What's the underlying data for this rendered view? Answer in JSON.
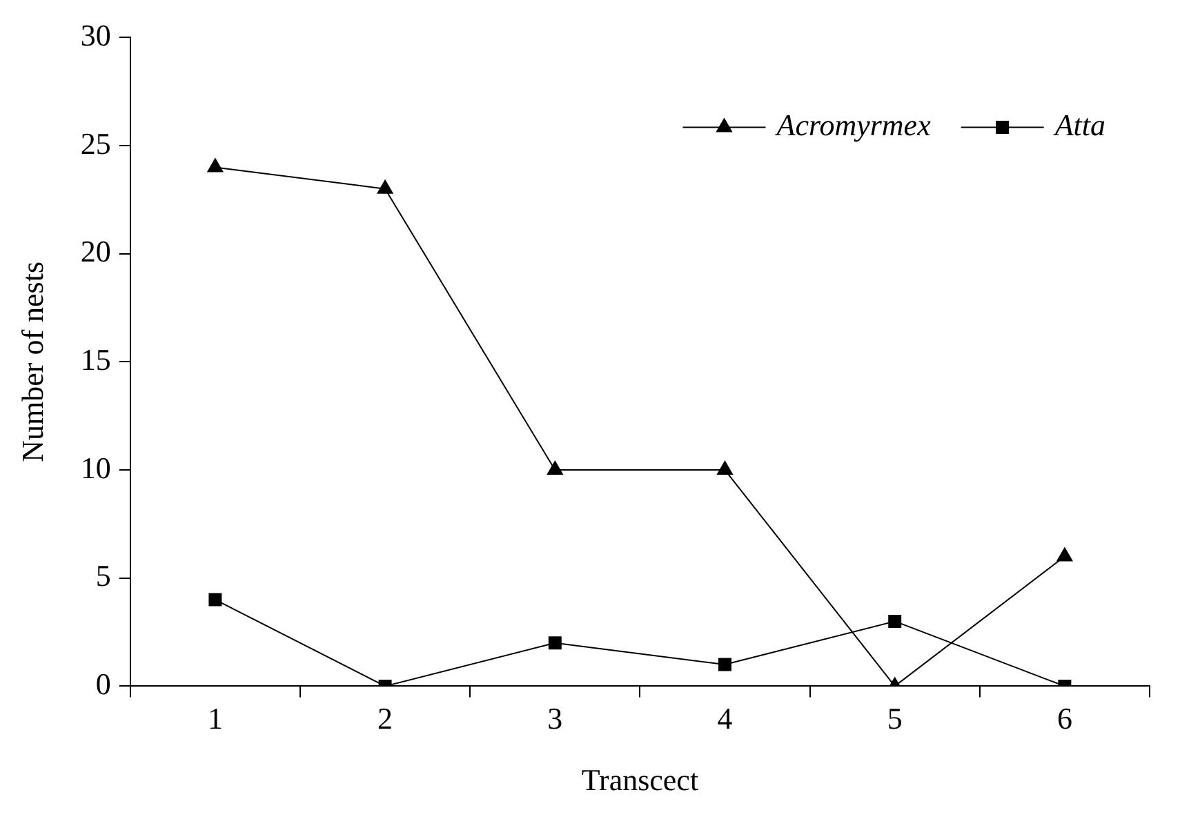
{
  "chart_data": {
    "type": "line",
    "xlabel": "Transcect",
    "ylabel": "Number of nests",
    "categories": [
      "1",
      "2",
      "3",
      "4",
      "5",
      "6"
    ],
    "series": [
      {
        "name": "Acromyrmex",
        "color": "#000000",
        "marker": "triangle",
        "values": [
          24,
          23,
          10,
          10,
          0,
          6
        ]
      },
      {
        "name": "Atta",
        "color": "#000000",
        "marker": "square",
        "values": [
          4,
          0,
          2,
          1,
          3,
          0
        ]
      }
    ],
    "ylim": [
      0,
      30
    ],
    "yticks": [
      0,
      5,
      10,
      15,
      20,
      25,
      30
    ],
    "grid": false,
    "legend": "top right",
    "line_style": "solid"
  }
}
